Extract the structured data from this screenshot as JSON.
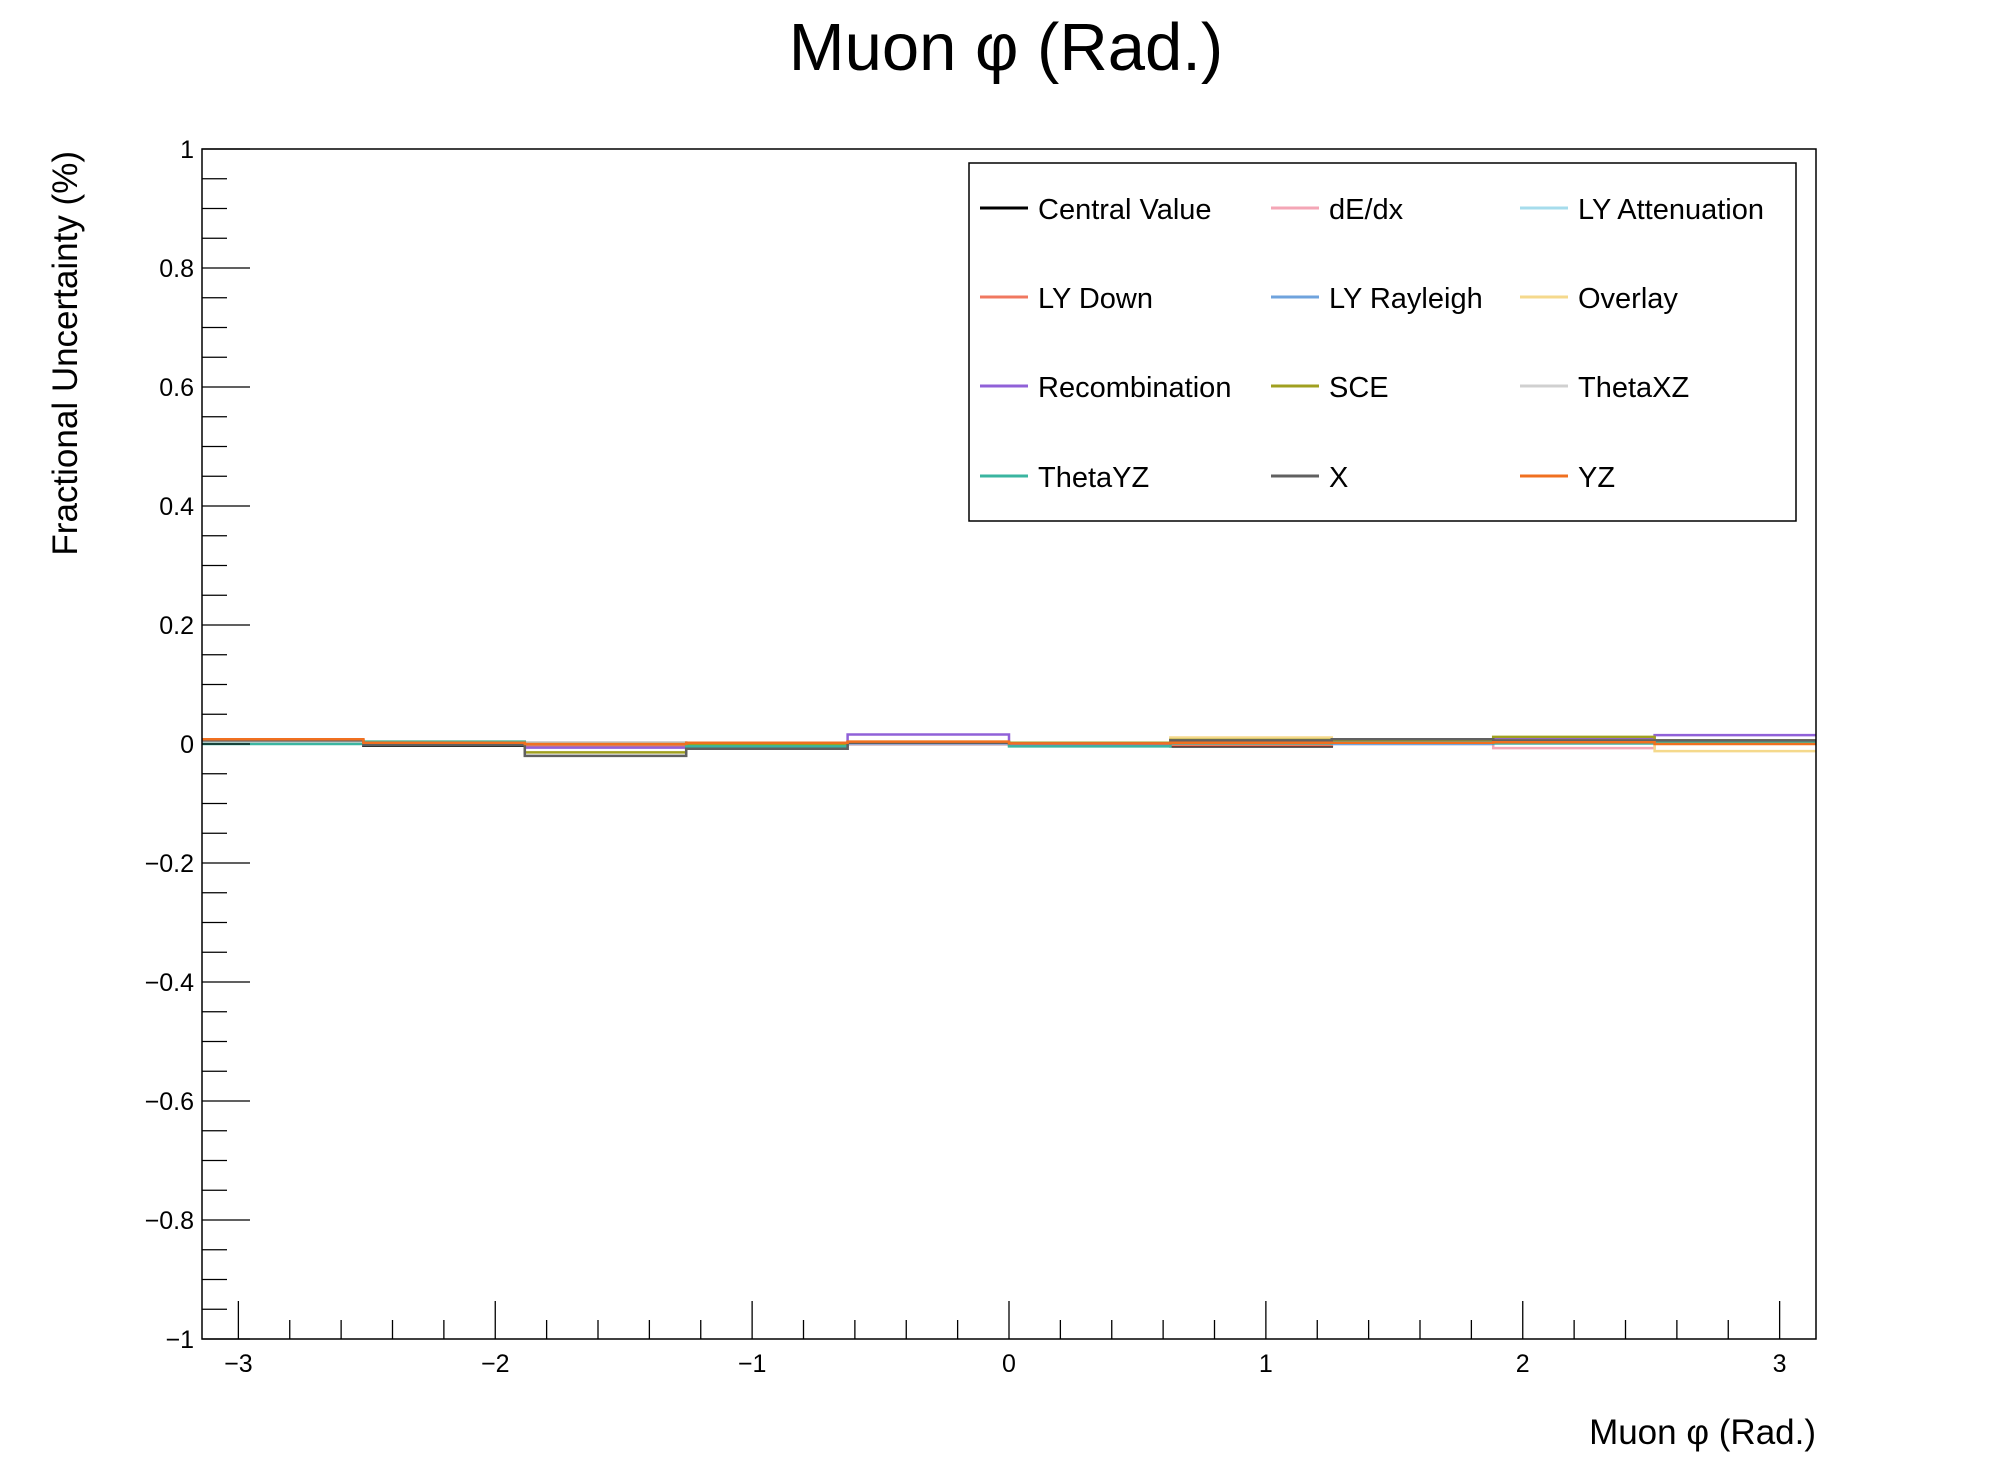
{
  "chart_data": {
    "type": "line",
    "title": "Muon φ (Rad.)",
    "xlabel": "Muon φ (Rad.)",
    "ylabel": "Fractional Uncertainty (%)",
    "xlim": [
      -3.1416,
      3.1416
    ],
    "ylim": [
      -1,
      1
    ],
    "x_ticks": [
      "−3",
      "−2",
      "−1",
      "0",
      "1",
      "2",
      "3"
    ],
    "y_ticks": [
      "1",
      "0.8",
      "0.6",
      "0.4",
      "0.2",
      "0",
      "−0.2",
      "−0.4",
      "−0.6",
      "−0.8",
      "−1"
    ],
    "bin_edges": [
      -3.1416,
      -2.5133,
      -1.885,
      -1.2566,
      -0.6283,
      0.0,
      0.6283,
      1.2566,
      1.885,
      2.5133,
      3.1416
    ],
    "legend_position": "top-right",
    "legend_columns": 3,
    "series": [
      {
        "name": "Central Value",
        "color": "#000000",
        "values": [
          0.002,
          -0.003,
          -0.002,
          -0.003,
          0.0,
          0.0,
          -0.004,
          0.002,
          0.002,
          0.002
        ]
      },
      {
        "name": "dE/dx",
        "color": "#f4a6b6",
        "values": [
          0.003,
          0.0,
          0.002,
          0.0,
          0.0,
          -0.002,
          0.001,
          0.0,
          -0.007,
          0.002
        ]
      },
      {
        "name": "LY Attenuation",
        "color": "#a6dcec",
        "values": [
          0.002,
          0.001,
          0.002,
          0.001,
          0.001,
          0.0,
          0.003,
          0.001,
          0.001,
          0.002
        ]
      },
      {
        "name": "LY Down",
        "color": "#f07860",
        "values": [
          0.003,
          -0.002,
          -0.003,
          -0.004,
          0.002,
          0.0,
          -0.002,
          0.001,
          0.004,
          0.004
        ]
      },
      {
        "name": "LY Rayleigh",
        "color": "#6fa3dd",
        "values": [
          0.002,
          0.0,
          0.001,
          0.0,
          0.001,
          -0.001,
          0.002,
          0.0,
          0.001,
          0.003
        ]
      },
      {
        "name": "Overlay",
        "color": "#f5d98c",
        "values": [
          0.001,
          0.004,
          0.001,
          0.001,
          0.004,
          0.001,
          0.011,
          0.002,
          0.008,
          -0.012
        ]
      },
      {
        "name": "Recombination",
        "color": "#9061d8",
        "values": [
          0.004,
          -0.002,
          -0.006,
          -0.008,
          0.016,
          0.0,
          0.006,
          0.007,
          0.01,
          0.015
        ]
      },
      {
        "name": "SCE",
        "color": "#a0a020",
        "values": [
          0.005,
          0.001,
          -0.014,
          -0.002,
          0.003,
          0.002,
          0.007,
          0.004,
          0.012,
          0.006
        ]
      },
      {
        "name": "ThetaXZ",
        "color": "#d0d0d0",
        "values": [
          0.003,
          0.002,
          0.003,
          0.002,
          0.002,
          0.001,
          0.004,
          0.003,
          0.003,
          0.004
        ]
      },
      {
        "name": "ThetaYZ",
        "color": "#3ab5a0",
        "values": [
          0.0,
          0.004,
          0.0,
          -0.004,
          0.002,
          -0.004,
          0.001,
          0.003,
          0.001,
          0.002
        ]
      },
      {
        "name": "X",
        "color": "#606060",
        "values": [
          0.006,
          -0.002,
          -0.02,
          -0.008,
          0.002,
          0.001,
          0.006,
          0.008,
          0.006,
          0.006
        ]
      },
      {
        "name": "YZ",
        "color": "#f07020",
        "values": [
          0.008,
          0.002,
          0.0,
          0.002,
          0.004,
          0.001,
          0.002,
          0.002,
          0.003,
          0.0
        ]
      }
    ]
  }
}
